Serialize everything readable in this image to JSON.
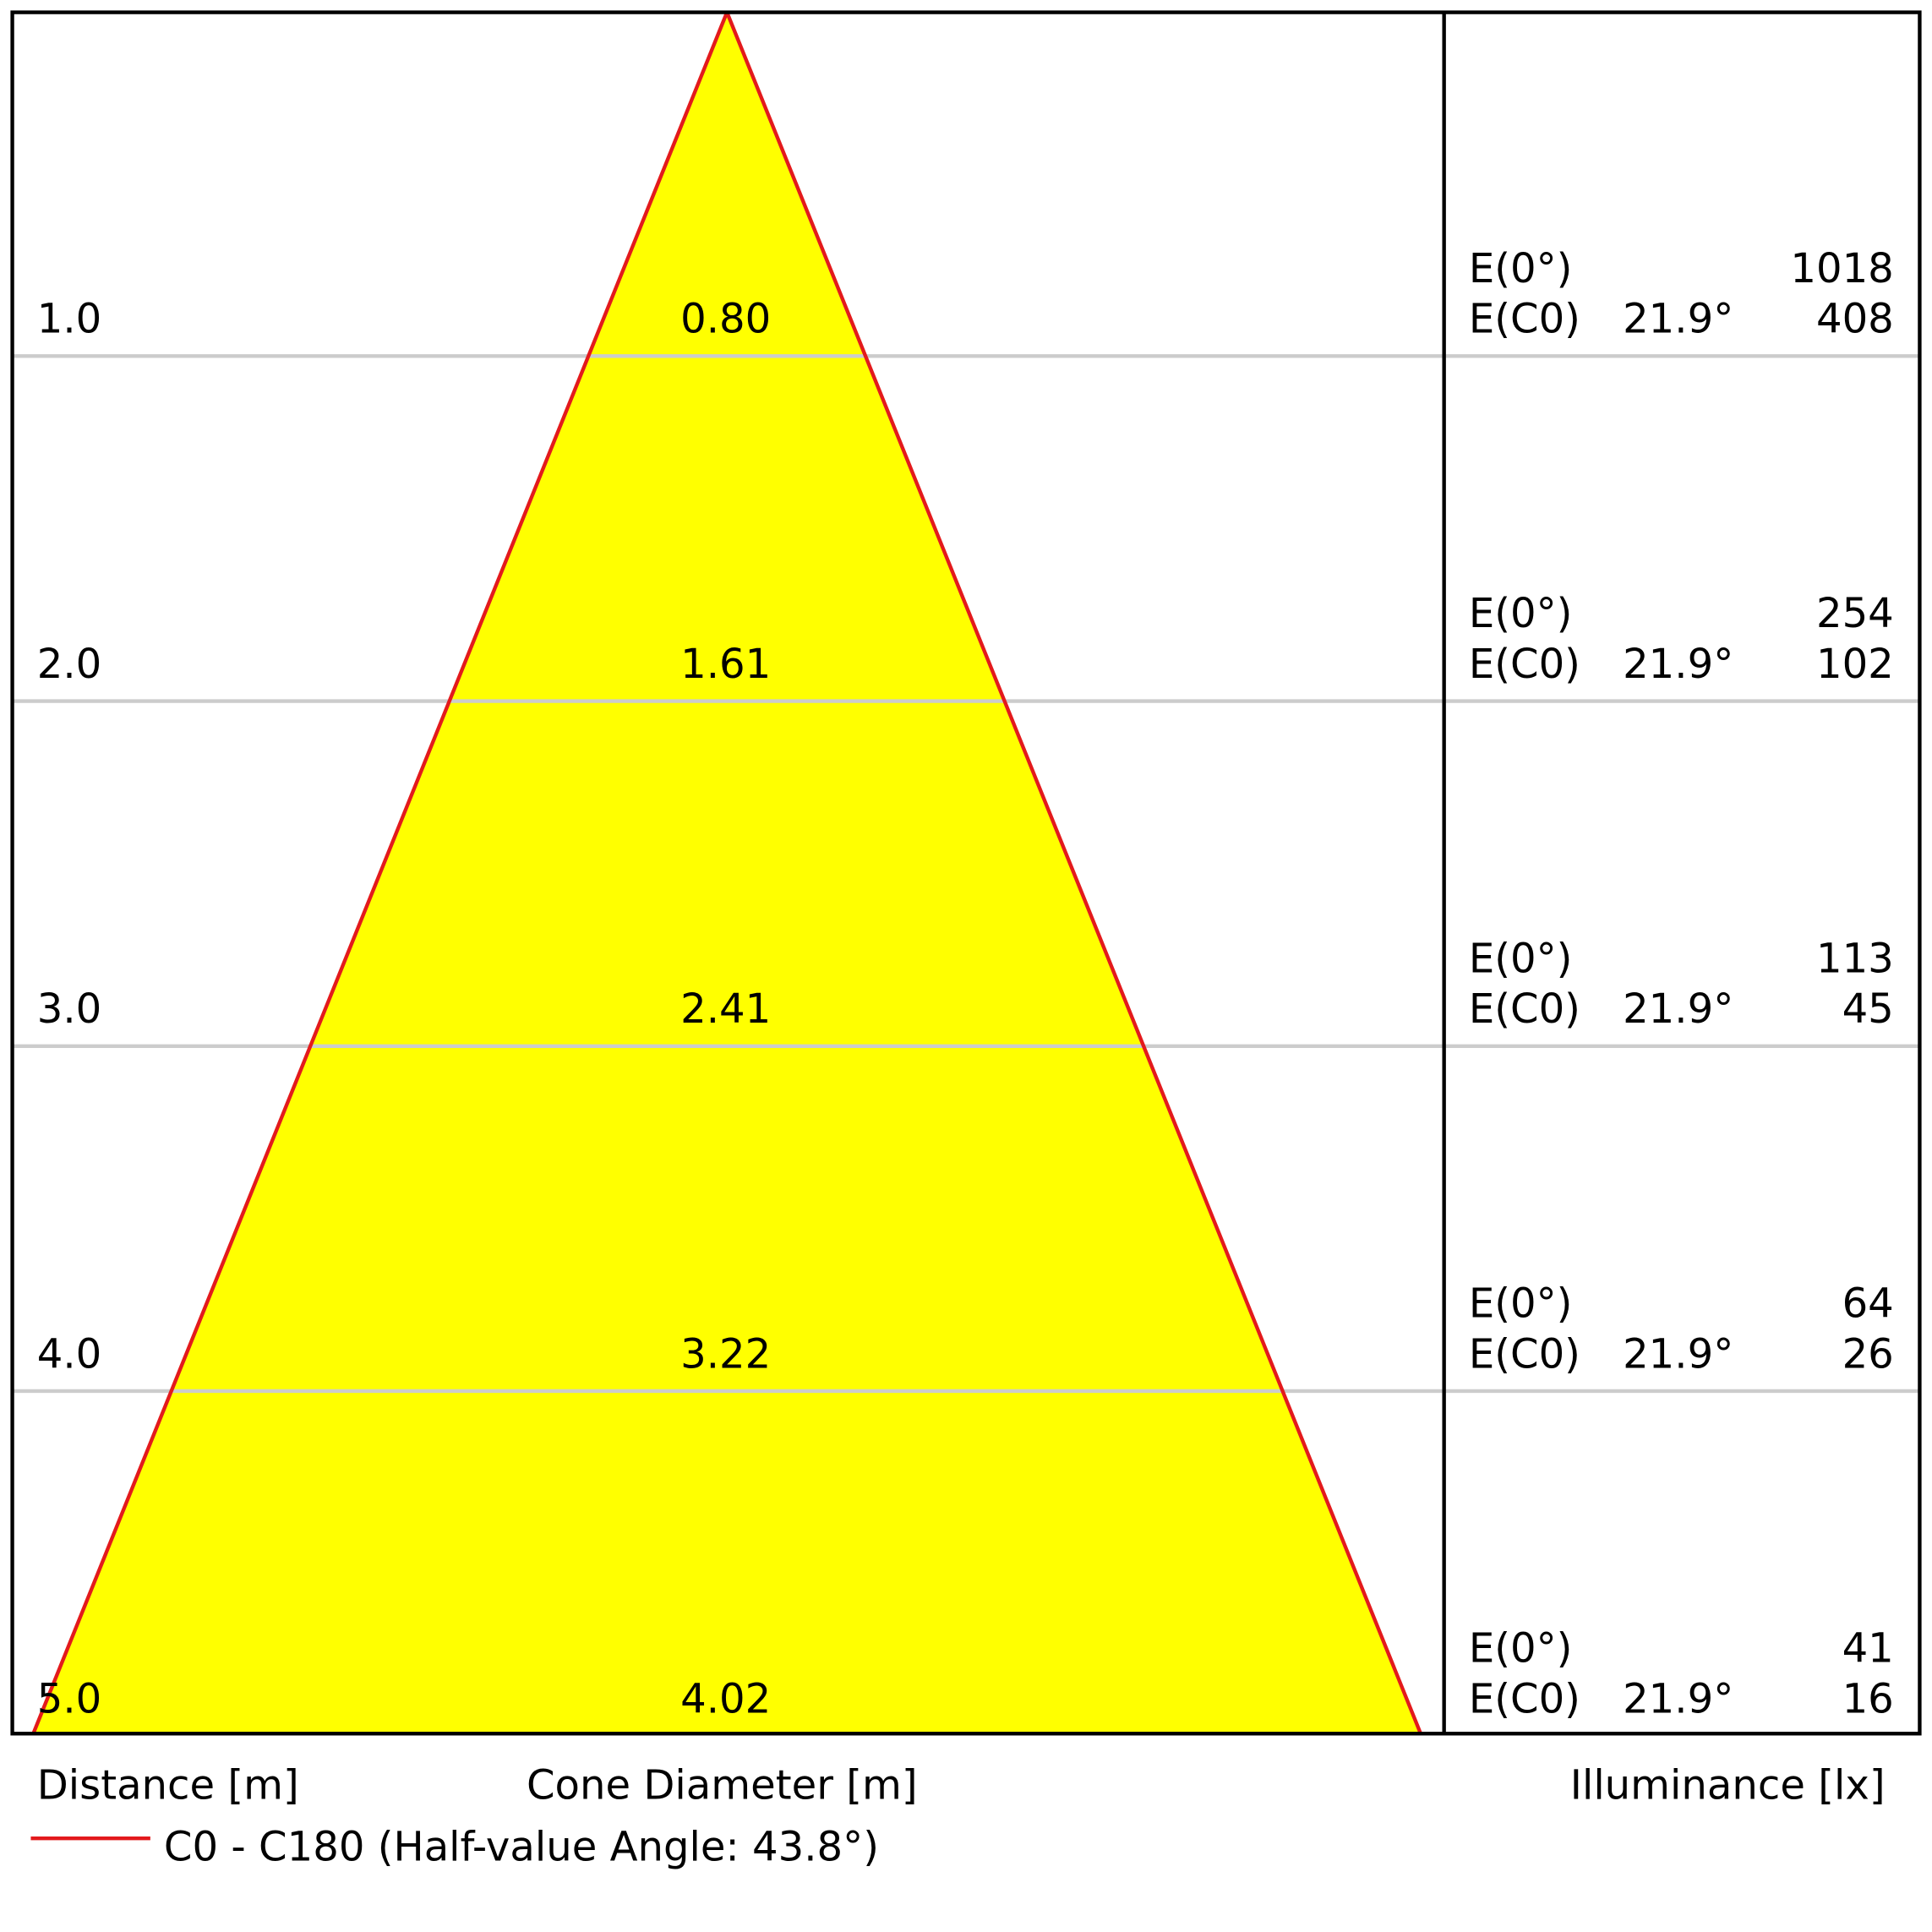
{
  "rows": [
    {
      "distance": "1.0",
      "diameter": "0.80",
      "e0_label": "E(0°)",
      "e0": "1018",
      "ec0_label": "E(C0)",
      "angle": "21.9°",
      "ec0": "408"
    },
    {
      "distance": "2.0",
      "diameter": "1.61",
      "e0_label": "E(0°)",
      "e0": "254",
      "ec0_label": "E(C0)",
      "angle": "21.9°",
      "ec0": "102"
    },
    {
      "distance": "3.0",
      "diameter": "2.41",
      "e0_label": "E(0°)",
      "e0": "113",
      "ec0_label": "E(C0)",
      "angle": "21.9°",
      "ec0": "45"
    },
    {
      "distance": "4.0",
      "diameter": "3.22",
      "e0_label": "E(0°)",
      "e0": "64",
      "ec0_label": "E(C0)",
      "angle": "21.9°",
      "ec0": "26"
    },
    {
      "distance": "5.0",
      "diameter": "4.02",
      "e0_label": "E(0°)",
      "e0": "41",
      "ec0_label": "E(C0)",
      "angle": "21.9°",
      "ec0": "16"
    }
  ],
  "axis_labels": {
    "distance": "Distance [m]",
    "diameter": "Cone Diameter [m]",
    "illuminance": "Illuminance [lx]"
  },
  "legend": "C0 - C180 (Half-value Angle: 43.8°)"
}
